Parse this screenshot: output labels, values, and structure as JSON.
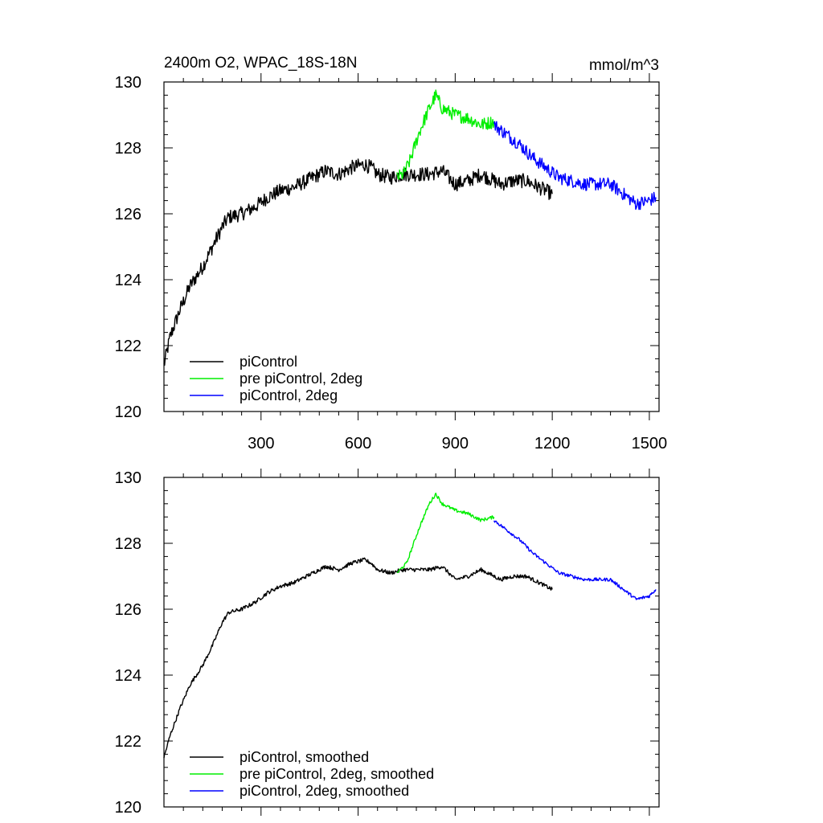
{
  "chart_data": [
    {
      "type": "line",
      "title": "2400m O2, WPAC_18S-18N",
      "units": "mmol/m^3",
      "xlim": [
        0,
        1530
      ],
      "ylim": [
        120,
        130
      ],
      "xticks": [
        300,
        600,
        900,
        1200,
        1500
      ],
      "x_tick_labels": [
        "300",
        "600",
        "900",
        "1200",
        "1500"
      ],
      "yticks": [
        120,
        122,
        124,
        126,
        128,
        130
      ],
      "y_tick_labels": [
        "120",
        "122",
        "124",
        "126",
        "128",
        "130"
      ],
      "legend_position": "bottom-left",
      "series": [
        {
          "name": "piControl",
          "color": "#000000",
          "noise": 0.22,
          "x": [
            0,
            20,
            50,
            80,
            120,
            150,
            180,
            200,
            240,
            280,
            320,
            360,
            400,
            440,
            480,
            500,
            540,
            580,
            620,
            640,
            660,
            700,
            740,
            780,
            820,
            860,
            900,
            940,
            980,
            1000,
            1040,
            1080,
            1120,
            1160,
            1200
          ],
          "y": [
            121.4,
            122.3,
            123.1,
            123.8,
            124.4,
            125.0,
            125.6,
            125.9,
            126.0,
            126.2,
            126.5,
            126.7,
            126.8,
            127.0,
            127.2,
            127.3,
            127.2,
            127.4,
            127.5,
            127.4,
            127.2,
            127.1,
            127.2,
            127.2,
            127.2,
            127.3,
            126.9,
            127.0,
            127.2,
            127.1,
            126.9,
            127.0,
            127.0,
            126.8,
            126.6
          ]
        },
        {
          "name": "pre piControl, 2deg",
          "color": "#00ee00",
          "noise": 0.2,
          "x": [
            720,
            740,
            760,
            790,
            820,
            840,
            860,
            900,
            940,
            980,
            1020
          ],
          "y": [
            127.1,
            127.2,
            127.6,
            128.5,
            129.2,
            129.6,
            129.2,
            129.0,
            128.9,
            128.7,
            128.8
          ]
        },
        {
          "name": "piControl, 2deg",
          "color": "#0000ff",
          "noise": 0.2,
          "x": [
            1020,
            1060,
            1100,
            1140,
            1180,
            1220,
            1260,
            1300,
            1340,
            1380,
            1420,
            1460,
            1500,
            1520
          ],
          "y": [
            128.7,
            128.4,
            128.1,
            127.7,
            127.4,
            127.1,
            127.0,
            126.9,
            126.9,
            126.9,
            126.6,
            126.3,
            126.4,
            126.5
          ]
        }
      ]
    },
    {
      "type": "line",
      "xlim": [
        0,
        1530
      ],
      "ylim": [
        120,
        130
      ],
      "xticks": [
        300,
        600,
        900,
        1200,
        1500
      ],
      "yticks": [
        120,
        122,
        124,
        126,
        128,
        130
      ],
      "y_tick_labels": [
        "120",
        "122",
        "124",
        "126",
        "128",
        "130"
      ],
      "legend_position": "bottom-left",
      "series": [
        {
          "name": "piControl, smoothed",
          "color": "#000000",
          "noise": 0.06,
          "x": [
            0,
            20,
            50,
            80,
            120,
            150,
            180,
            200,
            240,
            280,
            320,
            360,
            400,
            440,
            480,
            500,
            540,
            580,
            620,
            640,
            660,
            700,
            740,
            780,
            820,
            860,
            900,
            940,
            980,
            1000,
            1040,
            1080,
            1120,
            1160,
            1200
          ],
          "y": [
            121.5,
            122.2,
            123.0,
            123.7,
            124.3,
            124.9,
            125.6,
            125.9,
            126.0,
            126.2,
            126.5,
            126.7,
            126.8,
            127.0,
            127.2,
            127.3,
            127.2,
            127.4,
            127.5,
            127.4,
            127.2,
            127.1,
            127.2,
            127.2,
            127.2,
            127.3,
            126.9,
            127.0,
            127.2,
            127.1,
            126.9,
            127.0,
            127.0,
            126.8,
            126.6
          ]
        },
        {
          "name": "pre piControl, 2deg, smoothed",
          "color": "#00ee00",
          "noise": 0.05,
          "x": [
            720,
            750,
            790,
            820,
            840,
            860,
            900,
            940,
            980,
            1020
          ],
          "y": [
            127.1,
            127.4,
            128.5,
            129.2,
            129.5,
            129.2,
            129.0,
            128.9,
            128.7,
            128.8
          ]
        },
        {
          "name": "piControl, 2deg, smoothed",
          "color": "#0000ff",
          "noise": 0.05,
          "x": [
            1020,
            1060,
            1100,
            1140,
            1180,
            1220,
            1260,
            1300,
            1340,
            1380,
            1420,
            1460,
            1500,
            1520
          ],
          "y": [
            128.7,
            128.4,
            128.1,
            127.7,
            127.4,
            127.1,
            127.0,
            126.9,
            126.9,
            126.9,
            126.6,
            126.3,
            126.4,
            126.6
          ]
        }
      ]
    }
  ]
}
